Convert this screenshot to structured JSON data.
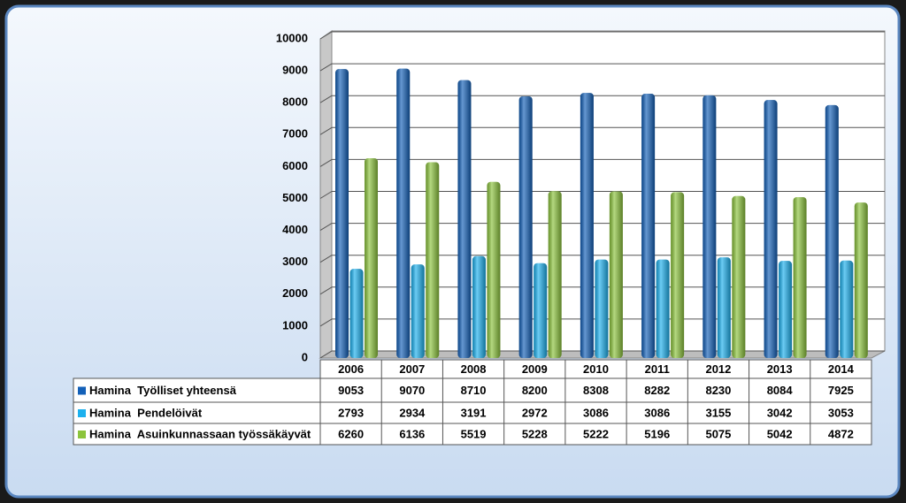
{
  "chart_data": {
    "type": "bar",
    "categories": [
      "2006",
      "2007",
      "2008",
      "2009",
      "2010",
      "2011",
      "2012",
      "2013",
      "2014"
    ],
    "series": [
      {
        "name": "Hamina  Työlliset yhteensä",
        "color": "#1360b8",
        "values": [
          9053,
          9070,
          8710,
          8200,
          8308,
          8282,
          8230,
          8084,
          7925
        ]
      },
      {
        "name": "Hamina  Pendelöivät",
        "color": "#1cb0ee",
        "values": [
          2793,
          2934,
          3191,
          2972,
          3086,
          3086,
          3155,
          3042,
          3053
        ]
      },
      {
        "name": "Hamina  Asuinkunnassaan työssäkäyvät",
        "color": "#8cc43c",
        "values": [
          6260,
          6136,
          5519,
          5228,
          5222,
          5196,
          5075,
          5042,
          4872
        ]
      }
    ],
    "ylim": [
      0,
      10000
    ],
    "yticks": [
      0,
      1000,
      2000,
      3000,
      4000,
      5000,
      6000,
      7000,
      8000,
      9000,
      10000
    ],
    "grid": true,
    "data_table": true
  }
}
